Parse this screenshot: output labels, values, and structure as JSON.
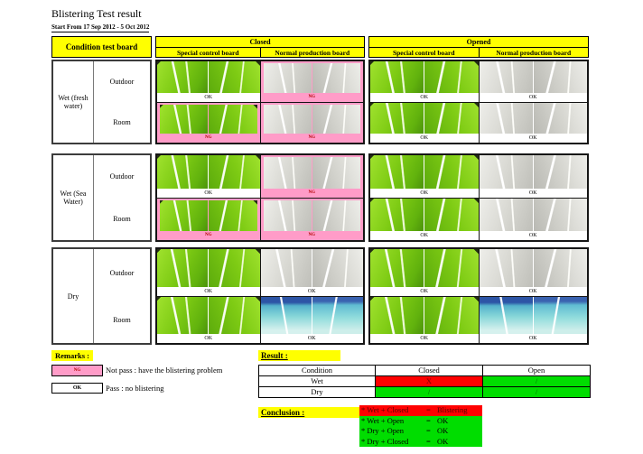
{
  "document": {
    "title": "Blistering Test result",
    "subtitle": "Start From 17 Sep 2012 - 5 Oct 2012"
  },
  "colors": {
    "highlight_yellow": "#ffff00",
    "not_pass_pink": "#ff9cc8",
    "fail_red": "#ff0000",
    "pass_green": "#00dd00",
    "board_green": "#7ecb14"
  },
  "header": {
    "condition_column": "Condition test board",
    "groups": [
      {
        "label": "Closed",
        "columns": [
          "Special control board",
          "Normal production board"
        ]
      },
      {
        "label": "Opened",
        "columns": [
          "Special control board",
          "Normal production board"
        ]
      }
    ]
  },
  "photo_grid": {
    "row_labels": [
      "Outdoor",
      "Room"
    ],
    "captions": {
      "ok": "OK",
      "ng": "NG"
    },
    "bands": [
      {
        "condition": "Wet (fresh water)",
        "panels": [
          {
            "group": "Closed",
            "cells": [
              {
                "row": "Outdoor",
                "column": "Special control board",
                "status": "OK",
                "photo": "green"
              },
              {
                "row": "Outdoor",
                "column": "Normal production board",
                "status": "NG",
                "photo": "white"
              },
              {
                "row": "Room",
                "column": "Special control board",
                "status": "NG",
                "photo": "green"
              },
              {
                "row": "Room",
                "column": "Normal production board",
                "status": "NG",
                "photo": "white"
              }
            ]
          },
          {
            "group": "Opened",
            "cells": [
              {
                "row": "Outdoor",
                "column": "Special control board",
                "status": "OK",
                "photo": "green"
              },
              {
                "row": "Outdoor",
                "column": "Normal production board",
                "status": "OK",
                "photo": "white"
              },
              {
                "row": "Room",
                "column": "Special control board",
                "status": "OK",
                "photo": "green"
              },
              {
                "row": "Room",
                "column": "Normal production board",
                "status": "OK",
                "photo": "white"
              }
            ]
          }
        ]
      },
      {
        "condition": "Wet (Sea Water)",
        "panels": [
          {
            "group": "Closed",
            "cells": [
              {
                "row": "Outdoor",
                "column": "Special control board",
                "status": "OK",
                "photo": "green"
              },
              {
                "row": "Outdoor",
                "column": "Normal production board",
                "status": "NG",
                "photo": "white"
              },
              {
                "row": "Room",
                "column": "Special control board",
                "status": "NG",
                "photo": "green"
              },
              {
                "row": "Room",
                "column": "Normal production board",
                "status": "NG",
                "photo": "white"
              }
            ]
          },
          {
            "group": "Opened",
            "cells": [
              {
                "row": "Outdoor",
                "column": "Special control board",
                "status": "OK",
                "photo": "green"
              },
              {
                "row": "Outdoor",
                "column": "Normal production board",
                "status": "OK",
                "photo": "white"
              },
              {
                "row": "Room",
                "column": "Special control board",
                "status": "OK",
                "photo": "green"
              },
              {
                "row": "Room",
                "column": "Normal production board",
                "status": "OK",
                "photo": "white"
              }
            ]
          }
        ]
      },
      {
        "condition": "Dry",
        "panels": [
          {
            "group": "Closed",
            "cells": [
              {
                "row": "Outdoor",
                "column": "Special control board",
                "status": "OK",
                "photo": "green"
              },
              {
                "row": "Outdoor",
                "column": "Normal production board",
                "status": "OK",
                "photo": "white"
              },
              {
                "row": "Room",
                "column": "Special control board",
                "status": "OK",
                "photo": "green"
              },
              {
                "row": "Room",
                "column": "Normal production board",
                "status": "OK",
                "photo": "teal"
              }
            ]
          },
          {
            "group": "Opened",
            "cells": [
              {
                "row": "Outdoor",
                "column": "Special control board",
                "status": "OK",
                "photo": "green"
              },
              {
                "row": "Outdoor",
                "column": "Normal production board",
                "status": "OK",
                "photo": "white"
              },
              {
                "row": "Room",
                "column": "Special control board",
                "status": "OK",
                "photo": "green"
              },
              {
                "row": "Room",
                "column": "Normal production board",
                "status": "OK",
                "photo": "teal"
              }
            ]
          }
        ]
      }
    ]
  },
  "remarks": {
    "label": "Remarks :",
    "items": [
      {
        "box": "NG",
        "box_style": "ng",
        "text": "Not pass : have the blistering problem"
      },
      {
        "box": "OK",
        "box_style": "okb",
        "text": "Pass : no blistering"
      }
    ]
  },
  "result": {
    "label": "Result :",
    "headers": [
      "Condition",
      "Closed",
      "Open"
    ],
    "rows": [
      {
        "condition": "Wet",
        "cells": [
          {
            "mark": "X",
            "style": "red"
          },
          {
            "mark": "/",
            "style": "green"
          }
        ]
      },
      {
        "condition": "Dry",
        "cells": [
          {
            "mark": "/",
            "style": "green"
          },
          {
            "mark": "/",
            "style": "green"
          }
        ]
      }
    ]
  },
  "conclusion": {
    "label": "Conclusion :",
    "lines": [
      {
        "item": "* Wet + Closed",
        "equals": "=",
        "value": "Blistering",
        "style": "red"
      },
      {
        "item": "* Wet + Open",
        "equals": "=",
        "value": "OK",
        "style": "green"
      },
      {
        "item": "* Dry + Open",
        "equals": "=",
        "value": "OK",
        "style": "green"
      },
      {
        "item": "* Dry + Closed",
        "equals": "=",
        "value": "OK",
        "style": "green"
      }
    ]
  }
}
